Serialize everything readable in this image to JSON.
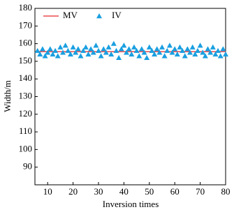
{
  "chart_data": {
    "type": "scatter",
    "xlabel": "Inversion times",
    "ylabel": "Width/m",
    "xlim": [
      5,
      80
    ],
    "xticks": [
      10,
      20,
      30,
      40,
      50,
      60,
      70,
      80
    ],
    "ylim": [
      80,
      180
    ],
    "yticks": [
      90,
      100,
      110,
      120,
      130,
      140,
      150,
      160,
      170,
      180
    ],
    "legend": "upper left",
    "series": [
      {
        "name": "MV",
        "color": "#e8262a",
        "style": "line",
        "x": [
          6,
          80
        ],
        "values": [
          155.5,
          155.5
        ]
      },
      {
        "name": "IV",
        "color": "#1a9fe0",
        "style": "triangle",
        "x": [
          6,
          7,
          8,
          9,
          10,
          11,
          12,
          13,
          14,
          15,
          16,
          17,
          18,
          19,
          20,
          21,
          22,
          23,
          24,
          25,
          26,
          27,
          28,
          29,
          30,
          31,
          32,
          33,
          34,
          35,
          36,
          37,
          38,
          39,
          40,
          41,
          42,
          43,
          44,
          45,
          46,
          47,
          48,
          49,
          50,
          51,
          52,
          53,
          54,
          55,
          56,
          57,
          58,
          59,
          60,
          61,
          62,
          63,
          64,
          65,
          66,
          67,
          68,
          69,
          70,
          71,
          72,
          73,
          74,
          75,
          76,
          77,
          78,
          79,
          80
        ],
        "values": [
          156,
          154,
          157,
          153,
          155,
          157,
          154,
          156,
          153,
          158,
          155,
          159,
          156,
          154,
          158,
          155,
          157,
          153,
          156,
          158,
          154,
          157,
          155,
          159,
          156,
          153,
          157,
          155,
          158,
          154,
          160,
          156,
          152,
          157,
          159,
          155,
          157,
          154,
          158,
          156,
          153,
          157,
          155,
          152,
          158,
          156,
          154,
          157,
          155,
          158,
          153,
          156,
          159,
          155,
          157,
          154,
          158,
          156,
          153,
          157,
          155,
          158,
          154,
          156,
          159,
          155,
          153,
          157,
          155,
          158,
          154,
          156,
          153,
          157,
          154
        ]
      }
    ]
  }
}
